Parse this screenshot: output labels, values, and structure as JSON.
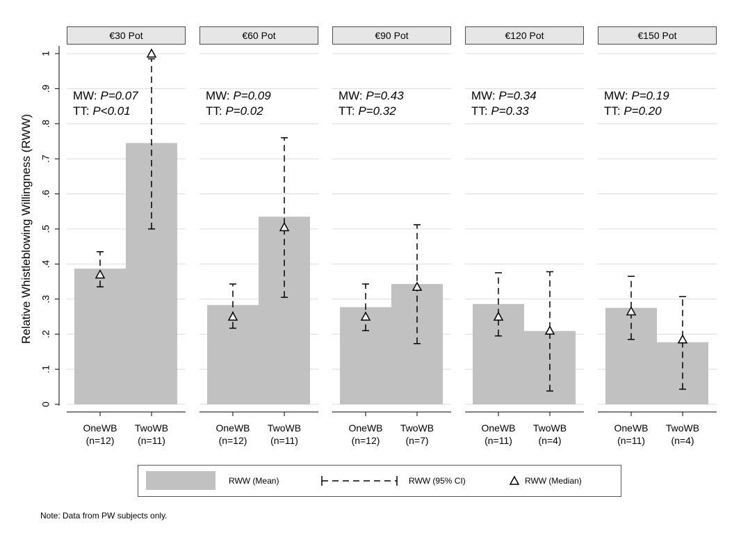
{
  "chart_data": {
    "type": "bar",
    "ylabel": "Relative Whistleblowing Willingness (RWW)",
    "ylim": [
      0,
      1.05
    ],
    "yticks": [
      "0",
      ".1",
      ".2",
      ".3",
      ".4",
      ".5",
      ".6",
      ".7",
      ".8",
      ".9",
      "1"
    ],
    "ytick_values": [
      0,
      0.1,
      0.2,
      0.3,
      0.4,
      0.5,
      0.6,
      0.7,
      0.8,
      0.9,
      1.0
    ],
    "grid": true,
    "legend_position": "bottom",
    "colors": {
      "bar": "#c1c1c1",
      "header_bg": "#e6e6e6",
      "grid": "#dcdcdc",
      "axis": "#000000"
    },
    "panels": [
      {
        "title": "€30 Pot",
        "mw_label": "MW: ",
        "mw_value": "P=0.07",
        "tt_label": "TT: ",
        "tt_value": "P<0.01",
        "groups": [
          {
            "name": "OneWB",
            "n": "(n=12)",
            "mean": 0.387,
            "ci": [
              0.335,
              0.435
            ],
            "median": 0.37
          },
          {
            "name": "TwoWB",
            "n": "(n=11)",
            "mean": 0.745,
            "ci": [
              0.5,
              0.985
            ],
            "median": 1.0
          }
        ]
      },
      {
        "title": "€60 Pot",
        "mw_label": "MW: ",
        "mw_value": "P=0.09",
        "tt_label": "TT: ",
        "tt_value": "P=0.02",
        "groups": [
          {
            "name": "OneWB",
            "n": "(n=12)",
            "mean": 0.283,
            "ci": [
              0.217,
              0.343
            ],
            "median": 0.25
          },
          {
            "name": "TwoWB",
            "n": "(n=11)",
            "mean": 0.535,
            "ci": [
              0.305,
              0.76
            ],
            "median": 0.505
          }
        ]
      },
      {
        "title": "€90 Pot",
        "mw_label": "MW: ",
        "mw_value": "P=0.43",
        "tt_label": "TT: ",
        "tt_value": "P=0.32",
        "groups": [
          {
            "name": "OneWB",
            "n": "(n=12)",
            "mean": 0.277,
            "ci": [
              0.21,
              0.343
            ],
            "median": 0.25
          },
          {
            "name": "TwoWB",
            "n": "(n=7)",
            "mean": 0.343,
            "ci": [
              0.173,
              0.512
            ],
            "median": 0.335
          }
        ]
      },
      {
        "title": "€120 Pot",
        "mw_label": "MW: ",
        "mw_value": "P=0.34",
        "tt_label": "TT: ",
        "tt_value": "P=0.33",
        "groups": [
          {
            "name": "OneWB",
            "n": "(n=11)",
            "mean": 0.286,
            "ci": [
              0.195,
              0.375
            ],
            "median": 0.25
          },
          {
            "name": "TwoWB",
            "n": "(n=4)",
            "mean": 0.209,
            "ci": [
              0.038,
              0.378
            ],
            "median": 0.21
          }
        ]
      },
      {
        "title": "€150 Pot",
        "mw_label": "MW: ",
        "mw_value": "P=0.19",
        "tt_label": "TT: ",
        "tt_value": "P=0.20",
        "groups": [
          {
            "name": "OneWB",
            "n": "(n=11)",
            "mean": 0.275,
            "ci": [
              0.185,
              0.365
            ],
            "median": 0.265
          },
          {
            "name": "TwoWB",
            "n": "(n=4)",
            "mean": 0.177,
            "ci": [
              0.043,
              0.307
            ],
            "median": 0.185
          }
        ]
      }
    ],
    "legend": [
      {
        "label": "RWW (Mean)",
        "marker": "gray-box"
      },
      {
        "label": "RWW (95% CI)",
        "marker": "dashed-capped-line"
      },
      {
        "label": "RWW (Median)",
        "marker": "hollow-triangle"
      }
    ],
    "note": "Note: Data from PW subjects only."
  }
}
